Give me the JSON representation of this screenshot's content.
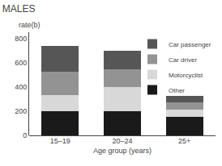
{
  "chart_data": {
    "type": "bar",
    "stacked": true,
    "title": "MALES",
    "ylabel": "rate(b)",
    "xlabel": "Age group (years)",
    "categories": [
      "15–19",
      "20–24",
      "25+"
    ],
    "series": [
      {
        "name": "Other",
        "color": "#1a1a1a",
        "values": [
          200,
          200,
          155
        ]
      },
      {
        "name": "Motorcyclist",
        "color": "#d8d8d8",
        "values": [
          130,
          200,
          60
        ]
      },
      {
        "name": "Car driver",
        "color": "#939393",
        "values": [
          195,
          145,
          55
        ]
      },
      {
        "name": "Car passenger",
        "color": "#565656",
        "values": [
          215,
          150,
          55
        ]
      }
    ],
    "ylim": [
      0,
      850
    ],
    "yticks": [
      0,
      200,
      400,
      600,
      800
    ],
    "grid": false,
    "legend": "upper right"
  }
}
